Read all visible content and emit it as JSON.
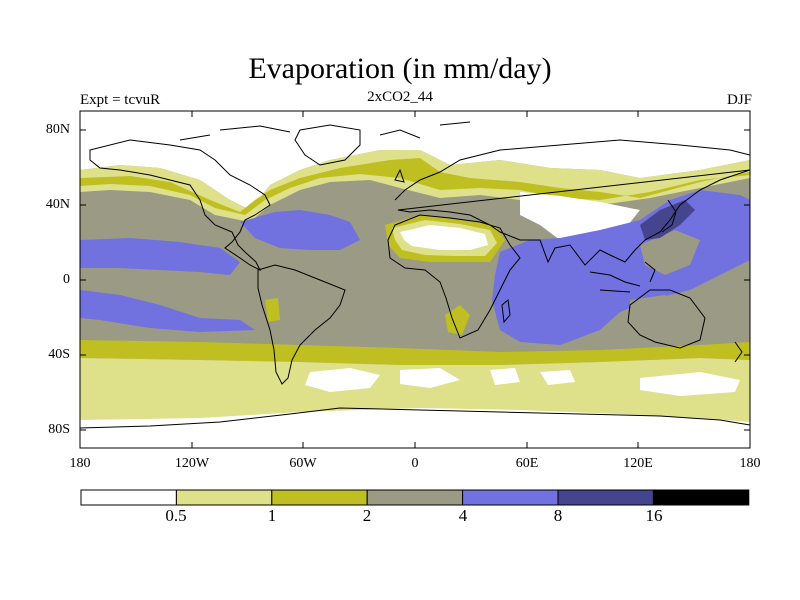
{
  "title": "Evaporation (in mm/day)",
  "experiment_label": "Expt = tcvuR",
  "case_label": "2xCO2_44",
  "season_label": "DJF",
  "lat_ticks": [
    "80N",
    "40N",
    "0",
    "40S",
    "80S"
  ],
  "lon_ticks": [
    "180",
    "120W",
    "60W",
    "0",
    "60E",
    "120E",
    "180"
  ],
  "colorbar": {
    "colors": [
      "#ffffff",
      "#dfe08a",
      "#bfbf22",
      "#9a9a85",
      "#7171e0",
      "#45458f",
      "#000000"
    ],
    "labels": [
      "0.5",
      "1",
      "2",
      "4",
      "8",
      "16"
    ]
  }
}
